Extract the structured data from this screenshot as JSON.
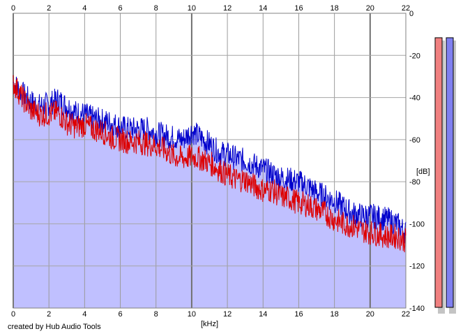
{
  "chart_data": {
    "type": "area",
    "x_unit": "[kHz]",
    "y_unit": "[dB]",
    "xlim": [
      0,
      22
    ],
    "ylim": [
      -140,
      0
    ],
    "x_ticks": [
      "0",
      "2",
      "4",
      "6",
      "8",
      "10",
      "12",
      "14",
      "16",
      "18",
      "20",
      "22"
    ],
    "y_ticks": [
      "0",
      "-20",
      "-40",
      "-60",
      "-80",
      "-100",
      "-120",
      "-140"
    ],
    "grid": true,
    "series": [
      {
        "color": "#0000cc",
        "x": [
          0,
          0.5,
          1,
          1.5,
          2,
          2.5,
          3,
          3.5,
          4,
          4.5,
          5,
          5.5,
          6,
          6.5,
          7,
          7.5,
          8,
          8.5,
          9,
          9.5,
          10,
          10.5,
          11,
          11.5,
          12,
          12.5,
          13,
          13.5,
          14,
          14.5,
          15,
          15.5,
          16,
          16.5,
          17,
          17.5,
          18,
          18.5,
          19,
          19.5,
          20,
          20.5,
          21,
          21.5,
          22
        ],
        "y": [
          -33,
          -38,
          -42,
          -44,
          -43,
          -41,
          -44,
          -47,
          -48,
          -50,
          -51,
          -52,
          -54,
          -55,
          -55,
          -55,
          -57,
          -58,
          -59,
          -60,
          -56,
          -59,
          -62,
          -66,
          -67,
          -69,
          -70,
          -72,
          -74,
          -76,
          -78,
          -79,
          -80,
          -82,
          -85,
          -87,
          -89,
          -92,
          -95,
          -96,
          -96,
          -97,
          -98,
          -100,
          -104
        ]
      },
      {
        "color": "#dd0000",
        "x": [
          0,
          0.5,
          1,
          1.5,
          2,
          2.5,
          3,
          3.5,
          4,
          4.5,
          5,
          5.5,
          6,
          6.5,
          7,
          7.5,
          8,
          8.5,
          9,
          9.5,
          10,
          10.5,
          11,
          11.5,
          12,
          12.5,
          13,
          13.5,
          14,
          14.5,
          15,
          15.5,
          16,
          16.5,
          17,
          17.5,
          18,
          18.5,
          19,
          19.5,
          20,
          20.5,
          21,
          21.5,
          22
        ],
        "y": [
          -33,
          -40,
          -46,
          -48,
          -48,
          -47,
          -52,
          -54,
          -53,
          -55,
          -56,
          -59,
          -60,
          -61,
          -61,
          -62,
          -63,
          -65,
          -68,
          -69,
          -68,
          -69,
          -71,
          -74,
          -77,
          -79,
          -79,
          -82,
          -84,
          -84,
          -87,
          -88,
          -90,
          -91,
          -93,
          -95,
          -98,
          -100,
          -101,
          -103,
          -104,
          -105,
          -106,
          -106,
          -108
        ]
      }
    ],
    "meters": [
      {
        "color": "#f08080"
      },
      {
        "color": "#8080f0"
      }
    ]
  },
  "credit": "created by Hub Audio Tools"
}
